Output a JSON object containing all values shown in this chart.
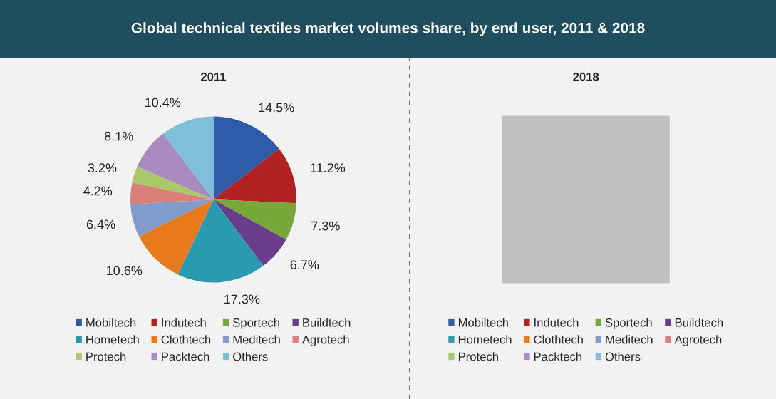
{
  "chart_data": [
    {
      "type": "pie",
      "title": "2011",
      "categories": [
        "Mobiltech",
        "Indutech",
        "Sportech",
        "Buildtech",
        "Hometech",
        "Clothtech",
        "Meditech",
        "Agrotech",
        "Protech",
        "Packtech",
        "Others"
      ],
      "values": [
        14.5,
        11.2,
        7.3,
        6.7,
        17.3,
        10.6,
        6.4,
        4.2,
        3.2,
        8.1,
        10.4
      ],
      "value_labels": [
        "14.5%",
        "11.2%",
        "7.3%",
        "6.7%",
        "17.3%",
        "10.6%",
        "6.4%",
        "4.2%",
        "3.2%",
        "8.1%",
        "10.4%"
      ],
      "colors": [
        "#2e5ca8",
        "#b22222",
        "#76a83a",
        "#6a3d8a",
        "#2a9ab0",
        "#e87a1e",
        "#7f9ccc",
        "#d9807a",
        "#a8c86a",
        "#a88cc0",
        "#7fc0d8"
      ],
      "legend": "bottom",
      "annotations": [
        "Global technical textiles market volumes share, by end user, 2011 & 2018"
      ]
    },
    {
      "type": "other",
      "title": "2018",
      "categories": [
        "Mobiltech",
        "Indutech",
        "Sportech",
        "Buildtech",
        "Hometech",
        "Clothtech",
        "Meditech",
        "Agrotech",
        "Protech",
        "Packtech",
        "Others"
      ],
      "colors": [
        "#2e5ca8",
        "#b22222",
        "#76a83a",
        "#6a3d8a",
        "#2a9ab0",
        "#e87a1e",
        "#7f9ccc",
        "#d9807a",
        "#a8c86a",
        "#a88cc0",
        "#7fc0d8"
      ]
    }
  ]
}
